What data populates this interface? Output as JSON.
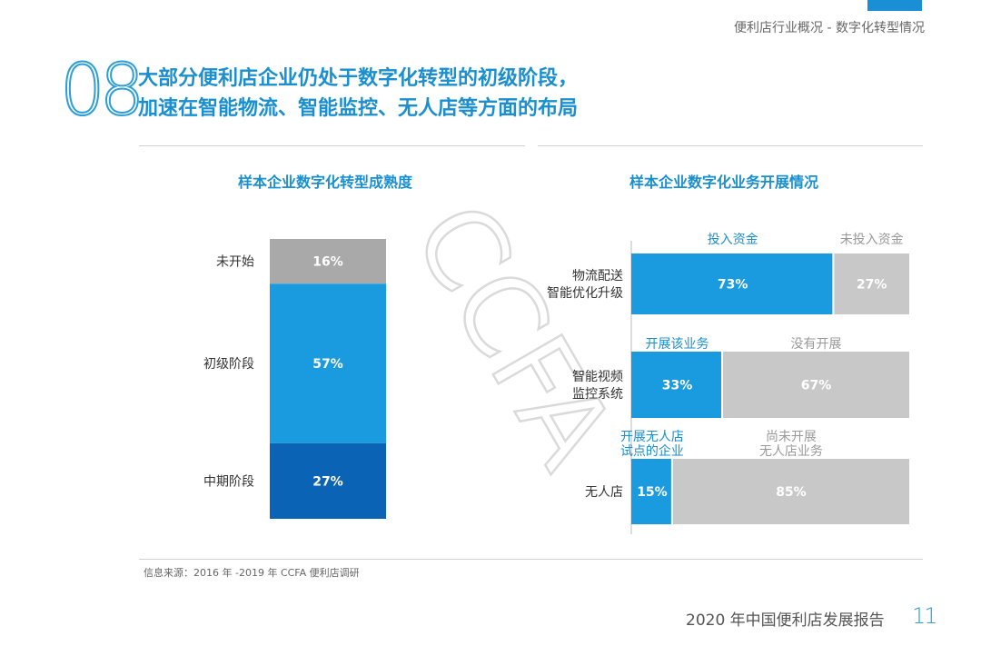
{
  "header": {
    "text": "便利店行业概况 - 数字化转型情况"
  },
  "section": {
    "number": "08",
    "headline_line1": "大部分便利店企业仍处于数字化转型的初级阶段，",
    "headline_line2": "加速在智能物流、智能监控、无人店等方面的布局"
  },
  "watermark": "CCFA",
  "colors": {
    "accent": "#1a8fd0",
    "gray": "#a9a9a9",
    "light_gray": "#c8c8c8",
    "blue_mid": "#1b9bdf",
    "blue_dark": "#0b63b5"
  },
  "chart_data": [
    {
      "type": "bar",
      "stacked": true,
      "title": "样本企业数字化转型成熟度",
      "categories": [
        "未开始",
        "初级阶段",
        "中期阶段"
      ],
      "values": [
        16,
        57,
        27
      ],
      "labels": [
        "16%",
        "57%",
        "27%"
      ],
      "unit": "%"
    },
    {
      "type": "bar",
      "stacked": true,
      "orientation": "horizontal",
      "title": "样本企业数字化业务开展情况",
      "rows": [
        {
          "label_lines": [
            "物流配送",
            "智能优化升级"
          ],
          "segment_names": [
            [
              "投入资金"
            ],
            [
              "未投入资金"
            ]
          ],
          "values": [
            73,
            27
          ],
          "labels": [
            "73%",
            "27%"
          ]
        },
        {
          "label_lines": [
            "智能视频",
            "监控系统"
          ],
          "segment_names": [
            [
              "开展该业务"
            ],
            [
              "没有开展"
            ]
          ],
          "values": [
            33,
            67
          ],
          "labels": [
            "33%",
            "67%"
          ]
        },
        {
          "label_lines": [
            "无人店"
          ],
          "segment_names": [
            [
              "开展无人店",
              "试点的企业"
            ],
            [
              "尚未开展",
              "无人店业务"
            ]
          ],
          "values": [
            15,
            85
          ],
          "labels": [
            "15%",
            "85%"
          ]
        }
      ]
    }
  ],
  "source": "信息来源：2016 年 -2019 年 CCFA 便利店调研",
  "footer": {
    "report": "2020 年中国便利店发展报告",
    "page": "11"
  }
}
